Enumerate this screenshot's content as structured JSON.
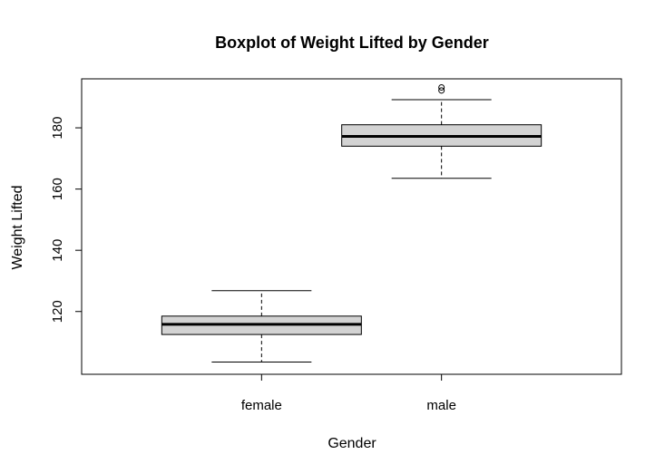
{
  "chart_data": {
    "type": "boxplot",
    "title": "Boxplot of Weight Lifted by Gender",
    "xlabel": "Gender",
    "ylabel": "Weight Lifted",
    "categories": [
      "female",
      "male"
    ],
    "ylim": [
      99.5,
      196
    ],
    "yticks": [
      120,
      140,
      160,
      180
    ],
    "boxes": [
      {
        "category": "female",
        "whisker_low": 103.5,
        "q1": 112.5,
        "median": 115.8,
        "q3": 118.5,
        "whisker_high": 126.8,
        "outliers": []
      },
      {
        "category": "male",
        "whisker_low": 163.5,
        "q1": 174,
        "median": 177.2,
        "q3": 181,
        "whisker_high": 189.2,
        "outliers": [
          192.2,
          193.2
        ]
      }
    ],
    "grid": false,
    "legend": "none",
    "colors": {
      "box_fill": "#d3d3d3",
      "stroke": "#000000",
      "background": "#ffffff"
    }
  }
}
